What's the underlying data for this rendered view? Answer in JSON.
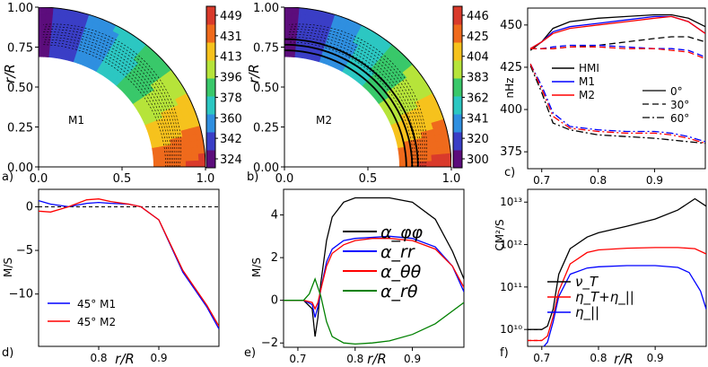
{
  "chart_data": [
    {
      "id": "a",
      "panel_label": "a)",
      "type": "heatmap",
      "model_label": "M1",
      "ylabel": "r/R",
      "x_ticks": [
        "0.0",
        "0.5",
        "1.0"
      ],
      "y_ticks": [
        "0.00",
        "0.25",
        "0.50",
        "0.75",
        "1.00"
      ],
      "colorbar_ticks": [
        "449",
        "431",
        "413",
        "396",
        "378",
        "360",
        "342",
        "324"
      ],
      "colorbar_colors": [
        "#5c0d7c",
        "#3a3ec6",
        "#2f8fe0",
        "#2cc7c2",
        "#39c86a",
        "#b6e43a",
        "#f6c21d",
        "#ef6a1c",
        "#d93a2b"
      ],
      "r_range": [
        0.69,
        1.0
      ]
    },
    {
      "id": "b",
      "panel_label": "b)",
      "type": "heatmap",
      "model_label": "M2",
      "ylabel": "r/R",
      "x_ticks": [
        "0.0",
        "0.5",
        "1.0"
      ],
      "y_ticks": [
        "0.00",
        "0.25",
        "0.50",
        "0.75",
        "1.00"
      ],
      "colorbar_ticks": [
        "446",
        "425",
        "404",
        "383",
        "362",
        "341",
        "320",
        "300"
      ],
      "colorbar_colors": [
        "#5c0d7c",
        "#3a3ec6",
        "#2f8fe0",
        "#2cc7c2",
        "#39c86a",
        "#b6e43a",
        "#f6c21d",
        "#ef6a1c",
        "#d93a2b"
      ],
      "r_range": [
        0.69,
        1.0
      ]
    },
    {
      "id": "c",
      "panel_label": "c)",
      "type": "line",
      "ylabel": "nHz",
      "xlabel": "",
      "x_ticks": [
        "0.7",
        "0.8",
        "0.9"
      ],
      "y_ticks": [
        "375",
        "400",
        "425",
        "450"
      ],
      "xlim": [
        0.675,
        0.99
      ],
      "ylim": [
        365,
        460
      ],
      "legend": [
        "HMI",
        "M1",
        "M2"
      ],
      "style_legend": [
        "0°",
        "30°",
        "60°"
      ],
      "series": [
        {
          "name": "HMI",
          "latitude": "0°",
          "color": "#000000",
          "x": [
            0.68,
            0.7,
            0.72,
            0.75,
            0.8,
            0.85,
            0.9,
            0.93,
            0.96,
            0.99
          ],
          "y": [
            435,
            440,
            448,
            452,
            454,
            455,
            456,
            456,
            454,
            449
          ]
        },
        {
          "name": "M1",
          "latitude": "0°",
          "color": "#0000ff",
          "x": [
            0.68,
            0.7,
            0.72,
            0.75,
            0.8,
            0.85,
            0.9,
            0.93,
            0.96,
            0.99
          ],
          "y": [
            436,
            440,
            446,
            449,
            451,
            453,
            455,
            455,
            452,
            445
          ]
        },
        {
          "name": "M2",
          "latitude": "0°",
          "color": "#ff0000",
          "x": [
            0.68,
            0.7,
            0.72,
            0.75,
            0.8,
            0.85,
            0.9,
            0.93,
            0.96,
            0.99
          ],
          "y": [
            436,
            440,
            445,
            448,
            450,
            452,
            454,
            455,
            452,
            445
          ]
        },
        {
          "name": "HMI",
          "latitude": "30°",
          "color": "#000000",
          "x": [
            0.68,
            0.7,
            0.72,
            0.75,
            0.8,
            0.85,
            0.9,
            0.93,
            0.96,
            0.99
          ],
          "y": [
            436,
            436,
            436,
            437,
            438,
            440,
            442,
            443,
            443,
            440
          ]
        },
        {
          "name": "M1",
          "latitude": "30°",
          "color": "#0000ff",
          "x": [
            0.68,
            0.7,
            0.72,
            0.75,
            0.8,
            0.85,
            0.9,
            0.93,
            0.96,
            0.99
          ],
          "y": [
            436,
            436,
            437,
            438,
            438,
            437,
            436,
            436,
            435,
            431
          ]
        },
        {
          "name": "M2",
          "latitude": "30°",
          "color": "#ff0000",
          "x": [
            0.68,
            0.7,
            0.72,
            0.75,
            0.8,
            0.85,
            0.9,
            0.93,
            0.96,
            0.99
          ],
          "y": [
            436,
            436,
            436,
            437,
            437,
            436,
            436,
            435,
            434,
            430
          ]
        },
        {
          "name": "HMI",
          "latitude": "60°",
          "color": "#000000",
          "x": [
            0.68,
            0.7,
            0.72,
            0.75,
            0.8,
            0.85,
            0.9,
            0.93,
            0.96,
            0.99
          ],
          "y": [
            426,
            410,
            392,
            388,
            385,
            384,
            383,
            382,
            381,
            380
          ]
        },
        {
          "name": "M1",
          "latitude": "60°",
          "color": "#0000ff",
          "x": [
            0.68,
            0.7,
            0.72,
            0.75,
            0.8,
            0.85,
            0.9,
            0.93,
            0.96,
            0.99
          ],
          "y": [
            427,
            414,
            398,
            390,
            388,
            387,
            387,
            386,
            384,
            381
          ]
        },
        {
          "name": "M2",
          "latitude": "60°",
          "color": "#ff0000",
          "x": [
            0.68,
            0.7,
            0.72,
            0.75,
            0.8,
            0.85,
            0.9,
            0.93,
            0.96,
            0.99
          ],
          "y": [
            427,
            412,
            396,
            389,
            387,
            386,
            386,
            385,
            383,
            380
          ]
        }
      ]
    },
    {
      "id": "d",
      "panel_label": "d)",
      "type": "line",
      "ylabel": "M/S",
      "xlabel": "r/R",
      "x_ticks": [
        "0.8",
        "0.9"
      ],
      "y_ticks": [
        "0",
        "−5",
        "−10"
      ],
      "xlim": [
        0.7,
        1.0
      ],
      "ylim": [
        -16,
        2
      ],
      "legend": [
        "45° M1",
        "45° M2"
      ],
      "series": [
        {
          "name": "45° M1",
          "color": "#0000ff",
          "x": [
            0.7,
            0.72,
            0.75,
            0.78,
            0.8,
            0.82,
            0.85,
            0.87,
            0.9,
            0.92,
            0.94,
            0.96,
            0.98,
            1.0
          ],
          "y": [
            0.7,
            0.3,
            0.0,
            0.4,
            0.5,
            0.4,
            0.3,
            0.0,
            -1.5,
            -4.5,
            -7.5,
            -9.5,
            -11.5,
            -14.0
          ]
        },
        {
          "name": "45° M2",
          "color": "#ff0000",
          "x": [
            0.7,
            0.72,
            0.75,
            0.78,
            0.8,
            0.82,
            0.85,
            0.87,
            0.9,
            0.92,
            0.94,
            0.96,
            0.98,
            1.0
          ],
          "y": [
            -0.5,
            -0.6,
            0.0,
            0.8,
            0.9,
            0.6,
            0.3,
            0.0,
            -1.5,
            -4.4,
            -7.3,
            -9.3,
            -11.3,
            -13.7
          ]
        }
      ]
    },
    {
      "id": "e",
      "panel_label": "e)",
      "type": "line",
      "ylabel": "M/S",
      "xlabel": "r/R",
      "x_ticks": [
        "0.7",
        "0.8",
        "0.9"
      ],
      "y_ticks": [
        "4",
        "2",
        "0",
        "−2"
      ],
      "xlim": [
        0.675,
        0.99
      ],
      "ylim": [
        -2.2,
        5.2
      ],
      "legend": [
        "α_φφ",
        "α_rr",
        "α_θθ",
        "α_rθ"
      ],
      "series": [
        {
          "name": "α_φφ",
          "color": "#000000",
          "x": [
            0.675,
            0.71,
            0.725,
            0.73,
            0.735,
            0.74,
            0.75,
            0.76,
            0.78,
            0.8,
            0.83,
            0.86,
            0.9,
            0.94,
            0.97,
            0.99
          ],
          "y": [
            0,
            0,
            -0.4,
            -1.7,
            -0.8,
            0.8,
            2.8,
            3.9,
            4.6,
            4.8,
            4.8,
            4.8,
            4.6,
            3.8,
            2.3,
            1.0
          ]
        },
        {
          "name": "α_rr",
          "color": "#0000ff",
          "x": [
            0.675,
            0.71,
            0.725,
            0.73,
            0.735,
            0.74,
            0.75,
            0.76,
            0.78,
            0.8,
            0.83,
            0.86,
            0.9,
            0.94,
            0.97,
            0.99
          ],
          "y": [
            0,
            0,
            -0.2,
            -0.8,
            -0.3,
            0.5,
            1.8,
            2.4,
            2.8,
            2.9,
            2.95,
            3.0,
            2.9,
            2.5,
            1.6,
            0.4
          ]
        },
        {
          "name": "α_θθ",
          "color": "#ff0000",
          "x": [
            0.675,
            0.71,
            0.725,
            0.73,
            0.735,
            0.74,
            0.75,
            0.76,
            0.78,
            0.8,
            0.83,
            0.86,
            0.9,
            0.94,
            0.97,
            0.99
          ],
          "y": [
            0,
            0,
            -0.1,
            -0.4,
            -0.1,
            0.5,
            1.6,
            2.2,
            2.6,
            2.8,
            2.9,
            2.9,
            2.8,
            2.4,
            1.6,
            0.6
          ]
        },
        {
          "name": "α_rθ",
          "color": "#008000",
          "x": [
            0.675,
            0.71,
            0.72,
            0.73,
            0.74,
            0.75,
            0.76,
            0.78,
            0.8,
            0.83,
            0.86,
            0.9,
            0.94,
            0.97,
            0.99
          ],
          "y": [
            0,
            0,
            0.3,
            1.0,
            0.2,
            -1.0,
            -1.7,
            -2.0,
            -2.05,
            -2.0,
            -1.9,
            -1.6,
            -1.1,
            -0.5,
            -0.1
          ]
        }
      ]
    },
    {
      "id": "f",
      "panel_label": "f)",
      "type": "line",
      "ylabel": "CM²/S",
      "xlabel": "r/R",
      "x_ticks": [
        "0.7",
        "0.8",
        "0.9"
      ],
      "y_ticks": [
        "10¹⁰",
        "10¹¹",
        "10¹²",
        "10¹³"
      ],
      "y_scale": "log",
      "xlim": [
        0.675,
        0.99
      ],
      "ylim": [
        4000000000.0,
        20000000000000.0
      ],
      "legend": [
        "ν_T",
        "η_T+η_||",
        "η_||"
      ],
      "series": [
        {
          "name": "ν_T",
          "color": "#000000",
          "x": [
            0.675,
            0.7,
            0.71,
            0.72,
            0.73,
            0.75,
            0.78,
            0.8,
            0.85,
            0.9,
            0.94,
            0.97,
            0.99
          ],
          "y": [
            10000000000.0,
            10000000000.0,
            12000000000.0,
            30000000000.0,
            200000000000.0,
            800000000000.0,
            1500000000000.0,
            1900000000000.0,
            2700000000000.0,
            4000000000000.0,
            6500000000000.0,
            12000000000000.0,
            8000000000000.0
          ]
        },
        {
          "name": "η_T+η_||",
          "color": "#ff0000",
          "x": [
            0.675,
            0.7,
            0.71,
            0.72,
            0.73,
            0.75,
            0.78,
            0.8,
            0.85,
            0.9,
            0.94,
            0.97,
            0.99
          ],
          "y": [
            5500000000.0,
            5500000000.0,
            7000000000.0,
            20000000000.0,
            80000000000.0,
            350000000000.0,
            650000000000.0,
            750000000000.0,
            820000000000.0,
            850000000000.0,
            850000000000.0,
            800000000000.0,
            600000000000.0
          ]
        },
        {
          "name": "η_||",
          "color": "#0000ff",
          "x": [
            0.675,
            0.7,
            0.71,
            0.72,
            0.73,
            0.75,
            0.78,
            0.8,
            0.85,
            0.9,
            0.94,
            0.96,
            0.98,
            0.99
          ],
          "y": [
            3500000000.0,
            3500000000.0,
            5000000000.0,
            15000000000.0,
            60000000000.0,
            200000000000.0,
            280000000000.0,
            300000000000.0,
            320000000000.0,
            320000000000.0,
            290000000000.0,
            220000000000.0,
            80000000000.0,
            30000000000.0
          ]
        }
      ]
    }
  ]
}
